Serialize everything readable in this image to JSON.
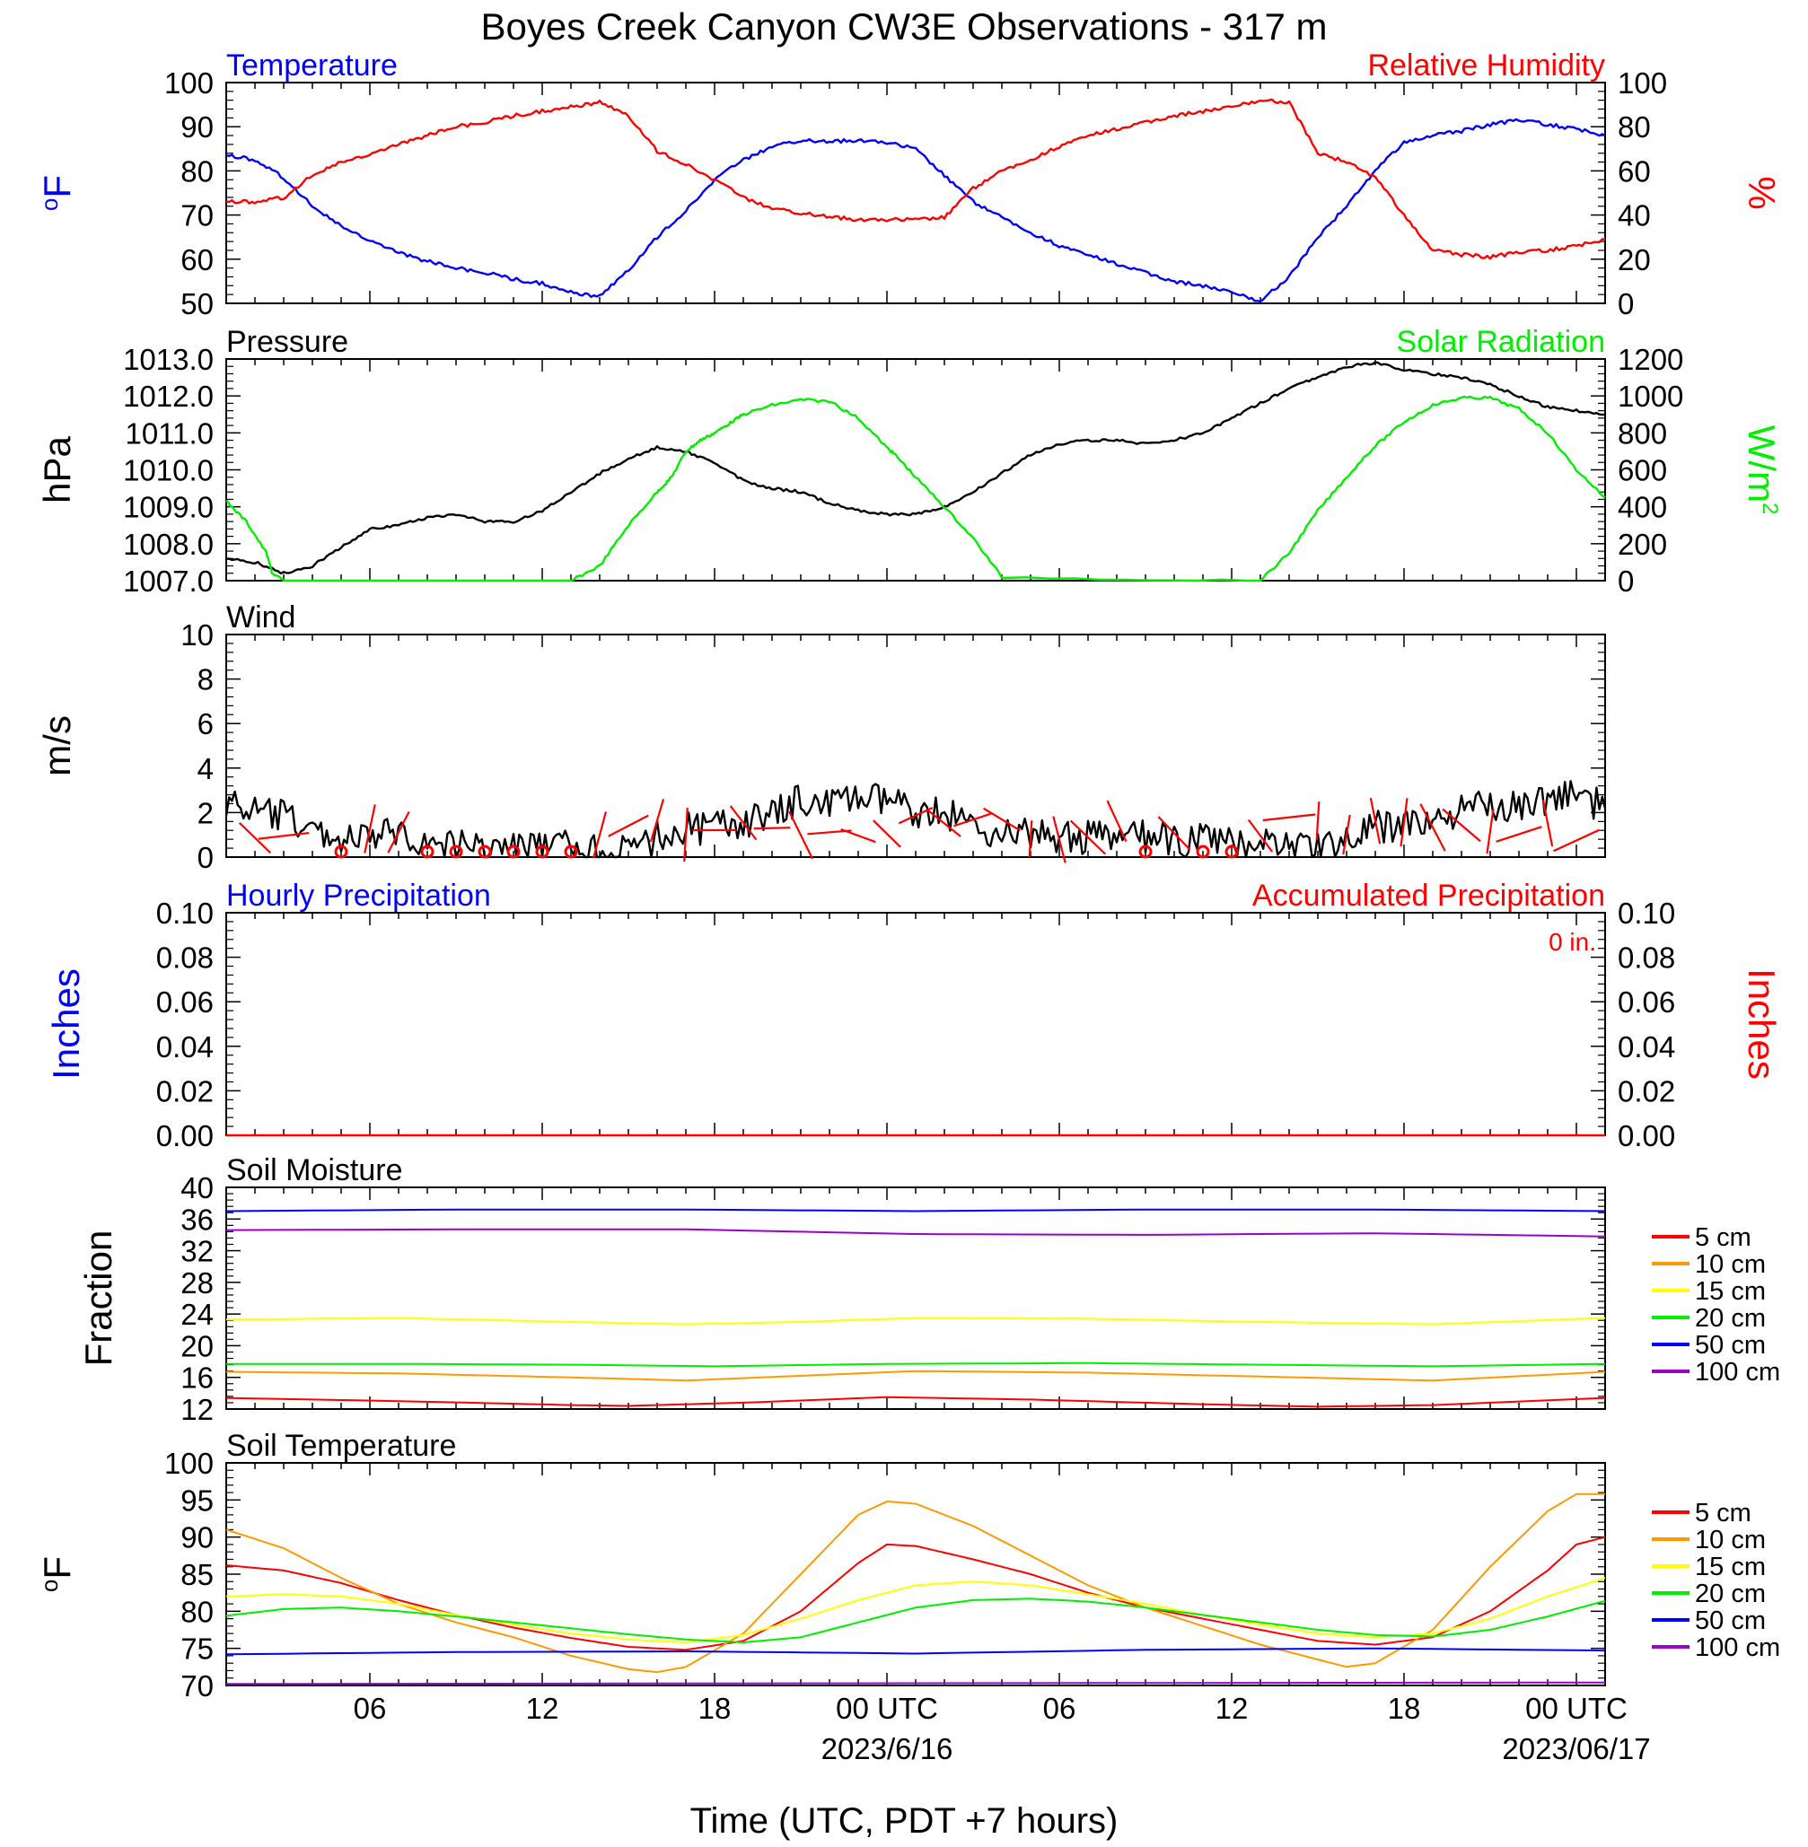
{
  "title": "Boyes Creek Canyon CW3E Observations - 317 m",
  "x_axis": {
    "title": "Time (UTC, PDT +7 hours)",
    "tick_labels": [
      "06",
      "12",
      "18",
      "00 UTC",
      "06",
      "12",
      "18",
      "00 UTC"
    ],
    "date_labels": [
      "2023/6/16",
      "2023/06/17"
    ],
    "range_hours": [
      1,
      49
    ]
  },
  "colors": {
    "blue": "#0000ff",
    "red": "#ff0000",
    "green": "#00ee00",
    "black": "#000000",
    "orange": "#ff9900",
    "yellow": "#ffff00",
    "purple": "#9900cc"
  },
  "chart_data": [
    {
      "type": "line",
      "left_title": "Temperature",
      "right_title": "Relative Humidity",
      "ylabel_left": "oF",
      "ylabel_right": "%",
      "ylim_left": [
        50,
        100
      ],
      "ylim_right": [
        0,
        100
      ],
      "yticks_left": [
        "100",
        "90",
        "80",
        "70",
        "60",
        "50"
      ],
      "yticks_right": [
        "100",
        "80",
        "60",
        "40",
        "20",
        "0"
      ],
      "series": [
        {
          "name": "Temperature",
          "axis": "left",
          "color": "#0000ff",
          "x": [
            1,
            2,
            3,
            4,
            5,
            6,
            7,
            8,
            9,
            10,
            11,
            12,
            13,
            14,
            15,
            16,
            17,
            18,
            19,
            20,
            21,
            22,
            23,
            24,
            25,
            26,
            27,
            28,
            29,
            30,
            31,
            32,
            33,
            34,
            35,
            36,
            37,
            38,
            39,
            40,
            41,
            42,
            43,
            44,
            45,
            46,
            47,
            48,
            49
          ],
          "y": [
            83.5,
            82.5,
            78.5,
            72,
            67.5,
            64,
            61.5,
            59.5,
            58,
            57,
            55.5,
            54.5,
            52.5,
            51.5,
            57.5,
            65,
            71,
            78,
            82.5,
            85.5,
            87,
            86.5,
            87,
            86.5,
            85,
            79,
            73,
            69.5,
            66,
            63,
            61,
            59,
            57,
            55,
            54,
            52.5,
            50.5,
            56,
            65,
            72,
            80,
            86.5,
            88,
            89,
            90.5,
            91.5,
            90.5,
            89.5,
            88
          ]
        },
        {
          "name": "Relative Humidity",
          "axis": "right",
          "color": "#ff0000",
          "x": [
            1,
            2,
            3,
            4,
            5,
            6,
            7,
            8,
            9,
            10,
            11,
            12,
            13,
            14,
            15,
            16,
            17,
            18,
            19,
            20,
            21,
            22,
            23,
            24,
            25,
            26,
            27,
            28,
            29,
            30,
            31,
            32,
            33,
            34,
            35,
            36,
            37,
            38,
            39,
            40,
            41,
            42,
            43,
            44,
            45,
            46,
            47,
            48,
            49
          ],
          "y": [
            46,
            46,
            48,
            58,
            64,
            67,
            72,
            76,
            80,
            82,
            85,
            87,
            89,
            91,
            85,
            69,
            63,
            56,
            48,
            43,
            41,
            39,
            38,
            38,
            38,
            39,
            52,
            60,
            65,
            71,
            76,
            79,
            82,
            85,
            87,
            89,
            92,
            91,
            68,
            64,
            57,
            40,
            24,
            22,
            21,
            23,
            24,
            26,
            29
          ]
        }
      ]
    },
    {
      "type": "line",
      "left_title": "Pressure",
      "right_title": "Solar Radiation",
      "ylabel_left": "hPa",
      "ylabel_right": "W/m2",
      "ylim_left": [
        1007,
        1013
      ],
      "ylim_right": [
        0,
        1200
      ],
      "yticks_left": [
        "1013.0",
        "1012.0",
        "1011.0",
        "1010.0",
        "1009.0",
        "1008.0",
        "1007.0"
      ],
      "yticks_right": [
        "1200",
        "1000",
        "800",
        "600",
        "400",
        "200",
        "0"
      ],
      "series": [
        {
          "name": "Pressure",
          "axis": "left",
          "color": "#000000",
          "x": [
            1,
            2,
            3,
            4,
            5,
            6,
            7,
            8,
            9,
            10,
            11,
            12,
            13,
            14,
            15,
            16,
            17,
            18,
            19,
            20,
            21,
            22,
            23,
            24,
            25,
            26,
            27,
            28,
            29,
            30,
            31,
            32,
            33,
            34,
            35,
            36,
            37,
            38,
            39,
            40,
            41,
            42,
            43,
            44,
            45,
            46,
            47,
            48,
            49
          ],
          "y": [
            1007.6,
            1007.5,
            1007.2,
            1007.4,
            1007.9,
            1008.4,
            1008.5,
            1008.7,
            1008.8,
            1008.6,
            1008.6,
            1008.9,
            1009.4,
            1009.9,
            1010.3,
            1010.6,
            1010.5,
            1010.2,
            1009.7,
            1009.5,
            1009.4,
            1009.1,
            1008.9,
            1008.8,
            1008.8,
            1009.0,
            1009.4,
            1009.9,
            1010.4,
            1010.7,
            1010.8,
            1010.8,
            1010.7,
            1010.8,
            1011.0,
            1011.4,
            1011.8,
            1012.2,
            1012.5,
            1012.8,
            1012.9,
            1012.7,
            1012.6,
            1012.5,
            1012.3,
            1012.0,
            1011.7,
            1011.6,
            1011.5
          ]
        },
        {
          "name": "Solar Radiation",
          "axis": "right",
          "color": "#00ee00",
          "x": [
            1,
            1.7,
            2.4,
            2.6,
            3,
            13,
            14,
            15,
            16,
            16.5,
            17,
            17.5,
            18,
            18.5,
            19,
            20,
            21,
            22,
            23,
            24,
            24.3,
            25,
            26,
            27,
            28,
            36.5,
            37,
            38,
            39,
            40,
            41,
            42,
            43,
            44,
            45,
            46,
            47,
            48,
            49
          ],
          "y": [
            430,
            320,
            150,
            40,
            0,
            0,
            80,
            300,
            480,
            560,
            700,
            760,
            800,
            850,
            900,
            950,
            980,
            970,
            880,
            720,
            680,
            560,
            400,
            230,
            20,
            0,
            0,
            150,
            380,
            560,
            730,
            860,
            950,
            990,
            990,
            930,
            800,
            600,
            450
          ]
        }
      ]
    },
    {
      "type": "line",
      "left_title": "Wind",
      "ylabel_left": "m/s",
      "ylim_left": [
        0,
        10
      ],
      "yticks_left": [
        "10",
        "8",
        "6",
        "4",
        "2",
        "0"
      ],
      "series": [
        {
          "name": "Wind",
          "axis": "left",
          "color": "#000000",
          "x": [
            1,
            2,
            3,
            4,
            5,
            6,
            7,
            8,
            9,
            10,
            11,
            12,
            13,
            14,
            15,
            16,
            17,
            18,
            19,
            20,
            21,
            22,
            23,
            24,
            25,
            26,
            27,
            28,
            29,
            30,
            31,
            32,
            33,
            34,
            35,
            36,
            37,
            38,
            39,
            40,
            41,
            42,
            43,
            44,
            45,
            46,
            47,
            48,
            49
          ],
          "y": [
            2.5,
            2.0,
            1.8,
            1.2,
            0.8,
            0.8,
            1.2,
            0.6,
            0.5,
            0.5,
            0.4,
            0.4,
            0.5,
            0.3,
            0.2,
            0.9,
            1.3,
            1.3,
            1.6,
            1.8,
            2.6,
            2.4,
            2.6,
            2.5,
            2.1,
            2.0,
            1.4,
            1.1,
            1.0,
            0.9,
            0.9,
            0.8,
            0.9,
            0.7,
            0.8,
            0.6,
            0.8,
            0.6,
            0.5,
            0.7,
            1.3,
            1.5,
            1.6,
            2.0,
            2.4,
            2.3,
            2.6,
            2.9,
            2.2
          ]
        }
      ],
      "calm_circles_hours": [
        5,
        8,
        9,
        10,
        11,
        12,
        13,
        33,
        35,
        36
      ]
    },
    {
      "type": "line",
      "left_title": "Hourly Precipitation",
      "right_title": "Accumulated Precipitation",
      "annotation": "0 in.",
      "ylabel_left": "Inches",
      "ylabel_right": "Inches",
      "ylim_left": [
        0,
        0.1
      ],
      "ylim_right": [
        0,
        0.1
      ],
      "yticks_left": [
        "0.10",
        "0.08",
        "0.06",
        "0.04",
        "0.02",
        "0.00"
      ],
      "yticks_right": [
        "0.10",
        "0.08",
        "0.06",
        "0.04",
        "0.02",
        "0.00"
      ],
      "series": [
        {
          "name": "Accumulated Precipitation",
          "axis": "right",
          "color": "#ff0000",
          "x": [
            1,
            49
          ],
          "y": [
            0,
            0
          ]
        }
      ]
    },
    {
      "type": "line",
      "left_title": "Soil Moisture",
      "ylabel_left": "Fraction",
      "ylim_left": [
        12,
        40
      ],
      "yticks_left": [
        "40",
        "36",
        "32",
        "28",
        "24",
        "20",
        "16",
        "12"
      ],
      "legend": [
        "5 cm",
        "10 cm",
        "15 cm",
        "20 cm",
        "50 cm",
        "100 cm"
      ],
      "series": [
        {
          "name": "5 cm",
          "color": "#ff0000",
          "x": [
            1,
            7,
            13,
            15,
            19,
            24,
            29,
            35,
            39,
            43,
            49
          ],
          "y": [
            13.4,
            13.0,
            12.5,
            12.4,
            12.8,
            13.5,
            13.2,
            12.6,
            12.3,
            12.5,
            13.4
          ]
        },
        {
          "name": "10 cm",
          "color": "#ff9900",
          "x": [
            1,
            7,
            13,
            17,
            21,
            25,
            31,
            37,
            43,
            49
          ],
          "y": [
            16.7,
            16.5,
            16.0,
            15.6,
            16.2,
            16.8,
            16.6,
            16.1,
            15.6,
            16.7
          ]
        },
        {
          "name": "15 cm",
          "color": "#ffff00",
          "x": [
            1,
            7,
            13,
            17,
            21,
            25,
            31,
            37,
            43,
            49
          ],
          "y": [
            23.3,
            23.5,
            23.0,
            22.7,
            23.0,
            23.5,
            23.4,
            23.0,
            22.7,
            23.5
          ]
        },
        {
          "name": "20 cm",
          "color": "#00ee00",
          "x": [
            1,
            7,
            13,
            18,
            24,
            31,
            37,
            43,
            49
          ],
          "y": [
            17.7,
            17.7,
            17.6,
            17.4,
            17.7,
            17.8,
            17.6,
            17.4,
            17.7
          ]
        },
        {
          "name": "50 cm",
          "color": "#0000ff",
          "x": [
            1,
            9,
            17,
            25,
            33,
            41,
            49
          ],
          "y": [
            37.0,
            37.2,
            37.2,
            37.0,
            37.2,
            37.2,
            37.0
          ]
        },
        {
          "name": "100 cm",
          "color": "#9900cc",
          "x": [
            1,
            9,
            17,
            25,
            33,
            41,
            49
          ],
          "y": [
            34.6,
            34.7,
            34.7,
            34.1,
            34.0,
            34.2,
            33.8
          ]
        }
      ]
    },
    {
      "type": "line",
      "left_title": "Soil Temperature",
      "ylabel_left": "oF",
      "ylim_left": [
        70,
        100
      ],
      "yticks_left": [
        "100",
        "95",
        "90",
        "85",
        "80",
        "75",
        "70"
      ],
      "legend": [
        "5 cm",
        "10 cm",
        "15 cm",
        "20 cm",
        "50 cm",
        "100 cm"
      ],
      "series": [
        {
          "name": "5 cm",
          "color": "#ff0000",
          "x": [
            1,
            3,
            5,
            7,
            9,
            11,
            13,
            15,
            17,
            19,
            21,
            23,
            24,
            25,
            27,
            29,
            31,
            33,
            35,
            37,
            39,
            41,
            43,
            45,
            47,
            48,
            49
          ],
          "y": [
            86.2,
            85.5,
            83.8,
            81.5,
            79.5,
            77.8,
            76.4,
            75.2,
            74.8,
            76.0,
            80.0,
            86.5,
            89.0,
            88.8,
            87.0,
            85.0,
            82.5,
            80.5,
            79.0,
            77.5,
            76.0,
            75.5,
            76.5,
            80.0,
            85.5,
            89.0,
            90.0
          ]
        },
        {
          "name": "10 cm",
          "color": "#ff9900",
          "x": [
            1,
            3,
            5,
            7,
            9,
            11,
            13,
            15,
            16,
            17,
            19,
            21,
            23,
            24,
            25,
            27,
            29,
            31,
            33,
            35,
            37,
            39,
            40,
            41,
            43,
            45,
            47,
            48,
            49
          ],
          "y": [
            91.0,
            88.5,
            84.5,
            81.0,
            78.5,
            76.5,
            74.0,
            72.2,
            71.8,
            72.5,
            77.0,
            85.0,
            93.0,
            94.8,
            94.5,
            91.5,
            87.5,
            83.5,
            80.5,
            78.0,
            75.5,
            73.5,
            72.5,
            73.0,
            77.5,
            86.0,
            93.5,
            95.8,
            95.8
          ]
        },
        {
          "name": "15 cm",
          "color": "#ffff00",
          "x": [
            1,
            3,
            5,
            7,
            9,
            11,
            13,
            15,
            17,
            19,
            21,
            23,
            25,
            27,
            29,
            31,
            33,
            35,
            37,
            39,
            41,
            43,
            45,
            47,
            49
          ],
          "y": [
            82.0,
            82.3,
            82.0,
            81.0,
            79.5,
            78.2,
            77.0,
            76.2,
            75.8,
            76.8,
            79.0,
            81.5,
            83.5,
            84.0,
            83.5,
            82.3,
            81.0,
            79.5,
            78.2,
            77.0,
            76.5,
            77.0,
            79.0,
            82.0,
            84.5
          ]
        },
        {
          "name": "20 cm",
          "color": "#00ee00",
          "x": [
            1,
            3,
            5,
            7,
            9,
            11,
            13,
            15,
            17,
            19,
            21,
            23,
            25,
            27,
            29,
            31,
            33,
            35,
            37,
            39,
            41,
            43,
            45,
            47,
            49
          ],
          "y": [
            79.4,
            80.3,
            80.5,
            80.0,
            79.3,
            78.5,
            77.7,
            76.9,
            76.2,
            75.8,
            76.5,
            78.5,
            80.5,
            81.5,
            81.7,
            81.3,
            80.5,
            79.5,
            78.5,
            77.5,
            76.8,
            76.6,
            77.5,
            79.3,
            81.4
          ]
        },
        {
          "name": "50 cm",
          "color": "#0000ff",
          "x": [
            1,
            9,
            17,
            25,
            33,
            41,
            49
          ],
          "y": [
            74.2,
            74.5,
            74.6,
            74.3,
            74.8,
            75.0,
            74.7
          ]
        },
        {
          "name": "100 cm",
          "color": "#9900cc",
          "x": [
            1,
            25,
            49
          ],
          "y": [
            70.2,
            70.3,
            70.4
          ]
        }
      ]
    }
  ]
}
